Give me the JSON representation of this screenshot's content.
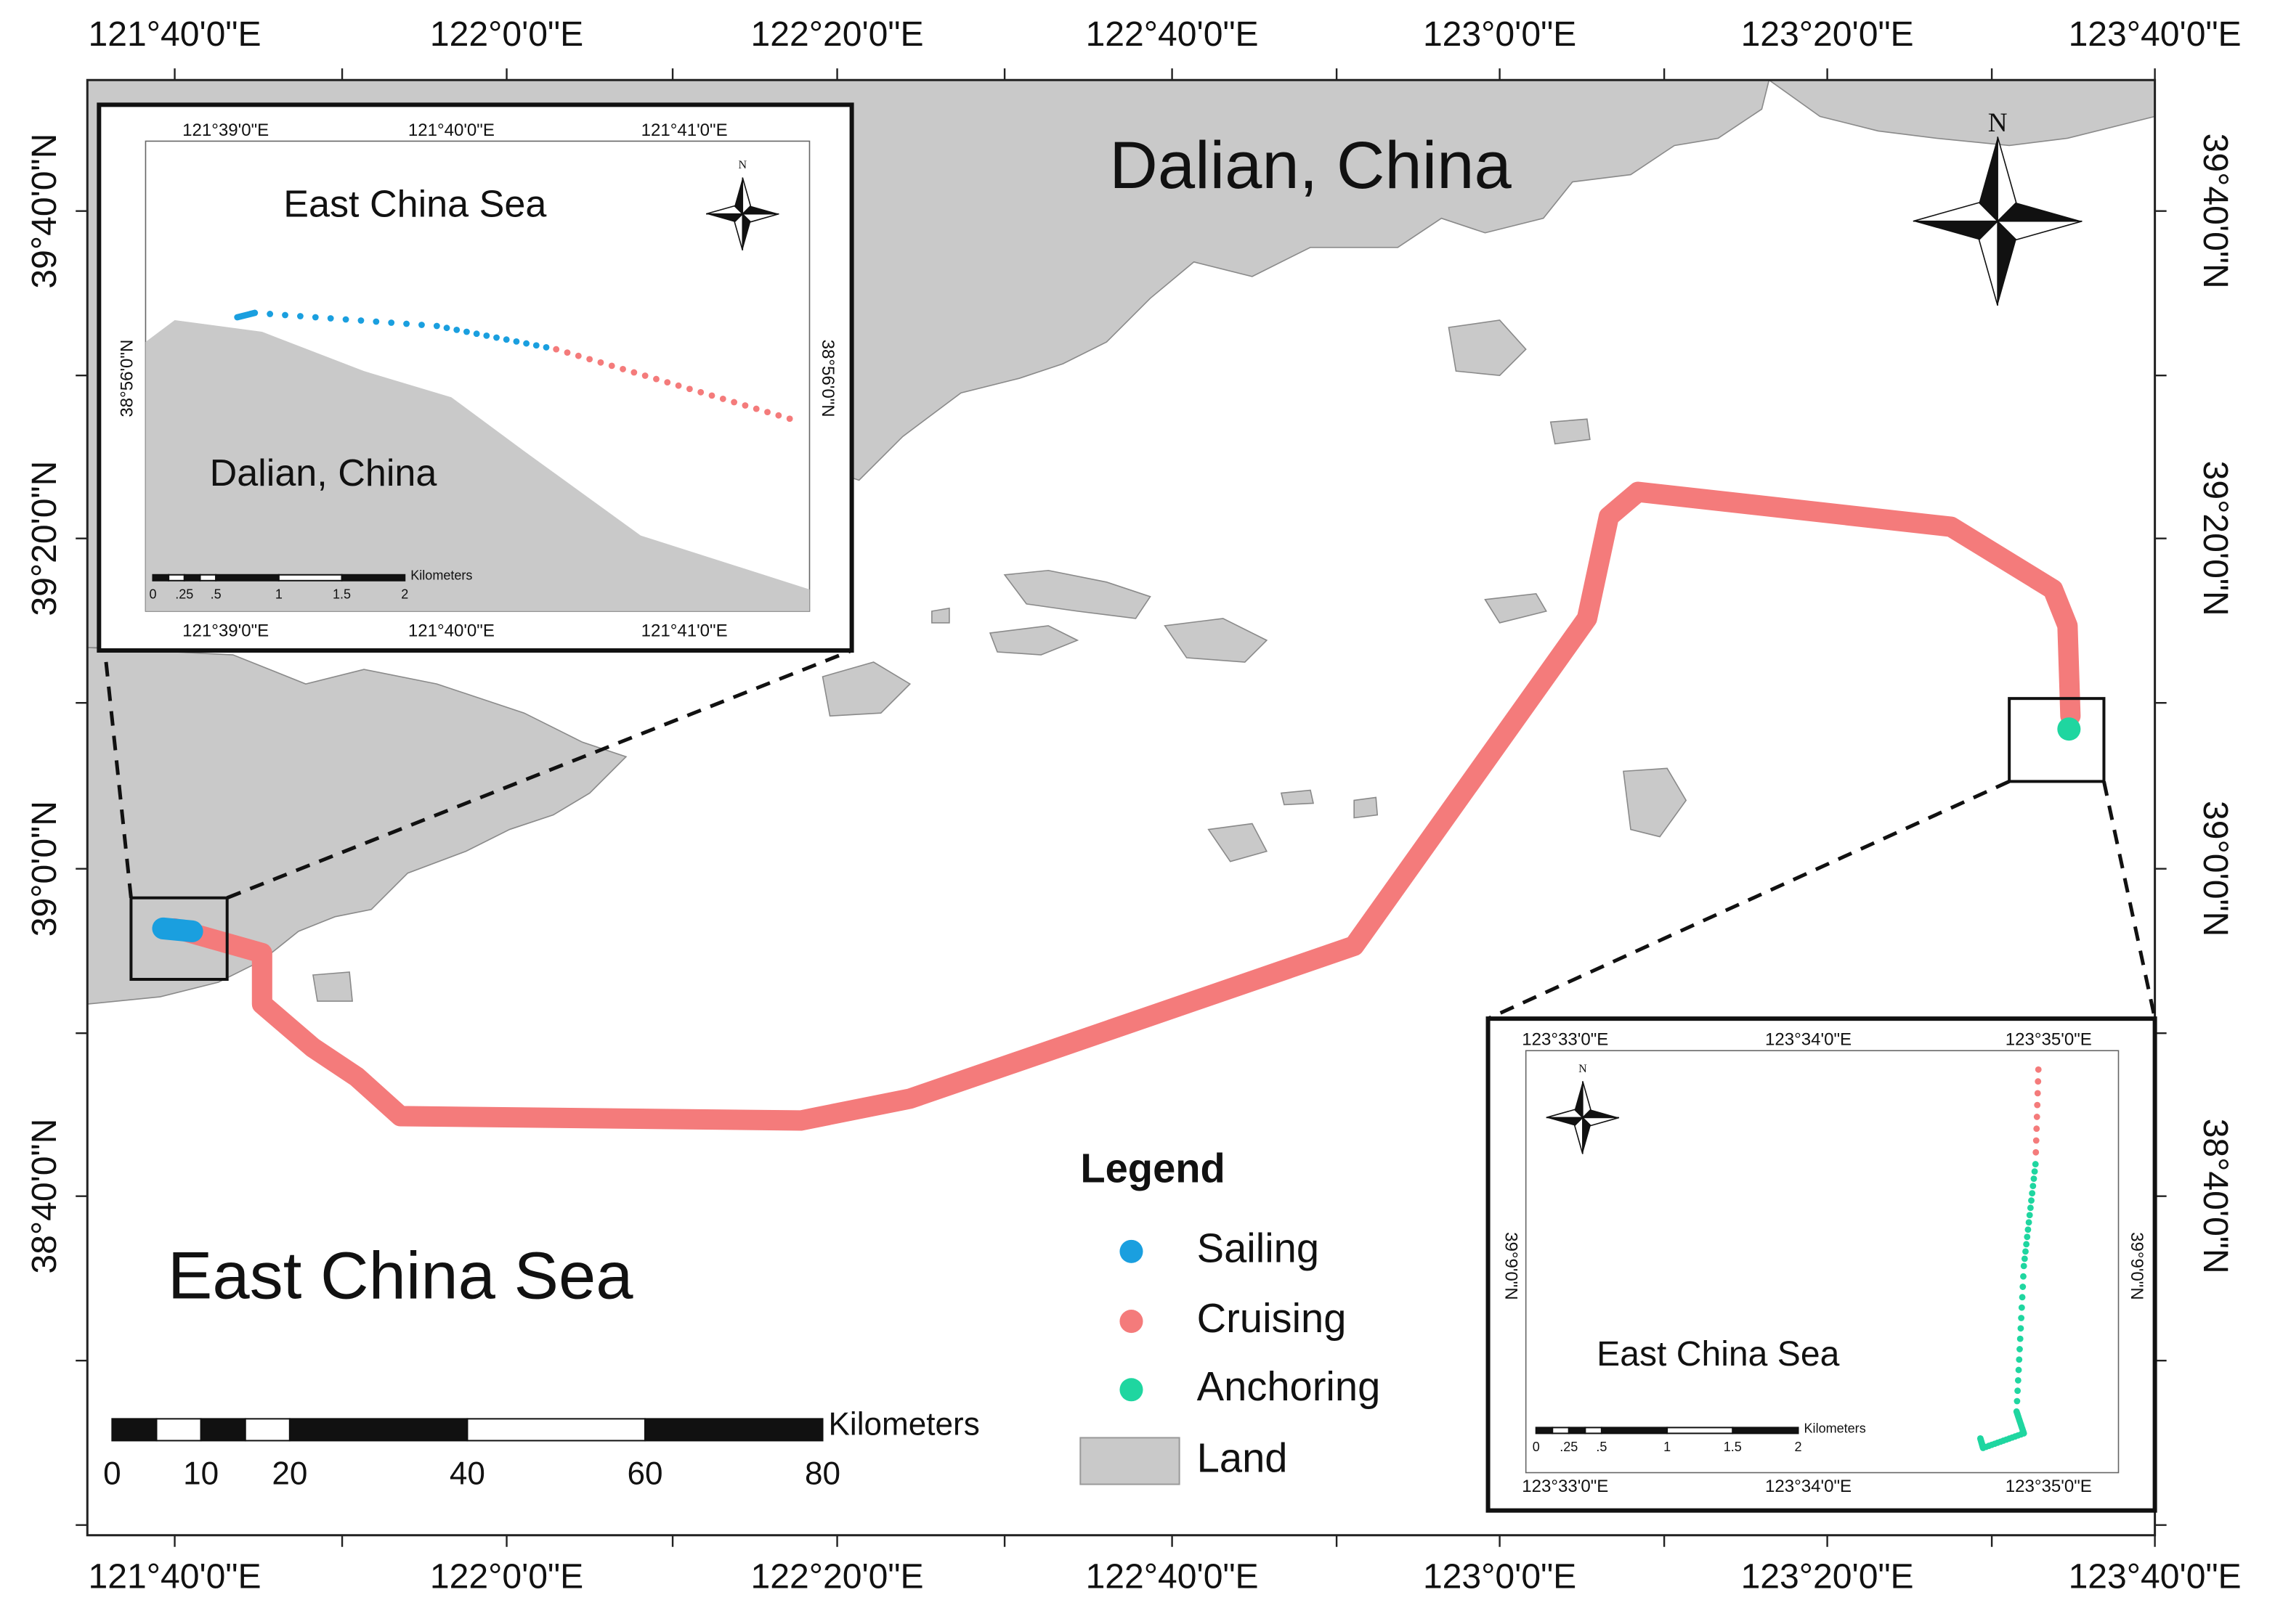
{
  "map": {
    "title": "Dalian, China",
    "sea_label": "East China Sea",
    "north": "N",
    "top_labels": [
      "121°40'0\"E",
      "122°0'0\"E",
      "122°20'0\"E",
      "122°40'0\"E",
      "123°0'0\"E",
      "123°20'0\"E",
      "123°40'0\"E"
    ],
    "bottom_labels": [
      "121°40'0\"E",
      "122°0'0\"E",
      "122°20'0\"E",
      "122°40'0\"E",
      "123°0'0\"E",
      "123°20'0\"E",
      "123°40'0\"E"
    ],
    "left_labels": [
      "39°40'0\"N",
      "39°20'0\"N",
      "39°0'0\"N",
      "38°40'0\"N"
    ],
    "right_labels": [
      "39°40'0\"N",
      "39°20'0\"N",
      "39°0'0\"N",
      "38°40'0\"N"
    ],
    "scale": {
      "unit": "Kilometers",
      "labels": [
        "0",
        "10",
        "20",
        "40",
        "60",
        "80"
      ]
    },
    "legend": {
      "title": "Legend",
      "items": [
        {
          "label": "Sailing",
          "color": "#1a9fdf"
        },
        {
          "label": "Cruising",
          "color": "#f47b7b"
        },
        {
          "label": "Anchoring",
          "color": "#1fd6a0"
        },
        {
          "label": "Land",
          "color": "#c9c9c9"
        }
      ]
    }
  },
  "inset_west": {
    "top_labels": [
      "121°39'0\"E",
      "121°40'0\"E",
      "121°41'0\"E"
    ],
    "bottom_labels": [
      "121°39'0\"E",
      "121°40'0\"E",
      "121°41'0\"E"
    ],
    "left_label": "38°56'0\"N",
    "right_label": "38°56'0\"N",
    "sea_label": "East China Sea",
    "land_label": "Dalian, China",
    "north": "N",
    "scale": {
      "unit": "Kilometers",
      "labels": [
        "0",
        ".25",
        ".5",
        "1",
        "1.5",
        "2"
      ]
    }
  },
  "inset_east": {
    "top_labels": [
      "123°33'0\"E",
      "123°34'0\"E",
      "123°35'0\"E"
    ],
    "bottom_labels": [
      "123°33'0\"E",
      "123°34'0\"E",
      "123°35'0\"E"
    ],
    "left_label": "39°9'0\"N",
    "right_label": "39°9'0\"N",
    "sea_label": "East China Sea",
    "north": "N",
    "scale": {
      "unit": "Kilometers",
      "labels": [
        "0",
        ".25",
        ".5",
        "1",
        "1.5",
        "2"
      ]
    }
  }
}
